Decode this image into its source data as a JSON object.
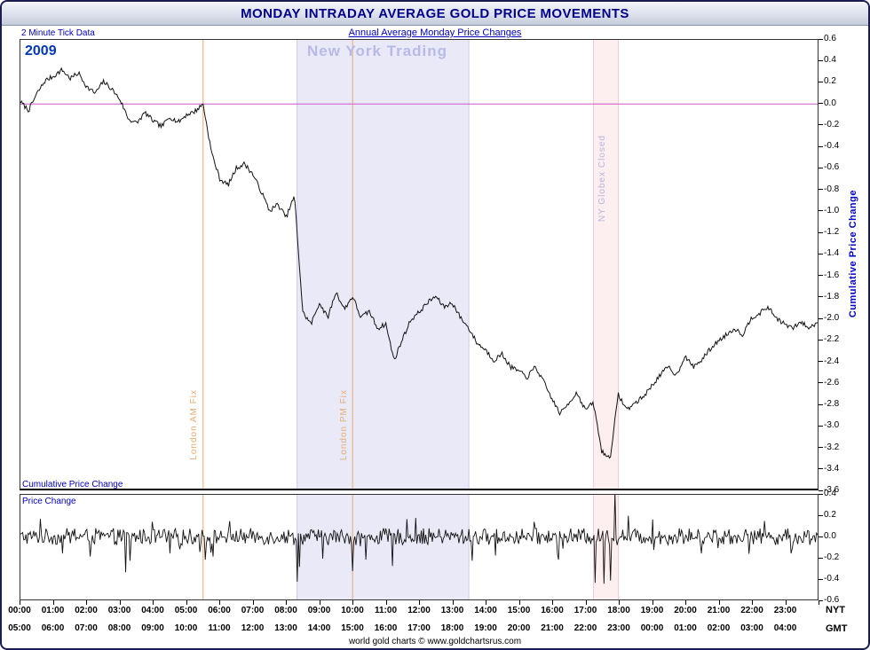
{
  "window": {
    "title": "MONDAY INTRADAY AVERAGE GOLD PRICE MOVEMENTS"
  },
  "header": {
    "left_note": "2 Minute Tick Data",
    "center_link": "Annual Average Monday Price Changes"
  },
  "chart": {
    "year_label": "2009",
    "watermark": "New York Trading",
    "right_axis_title": "Cumulative Price Change",
    "main_panel_label": "Cumulative Price Change",
    "lower_panel_label": "Price Change",
    "nyt_axis_label": "NYT",
    "gmt_axis_label": "GMT",
    "footer": "world gold charts © www.goldchartsrus.com",
    "annotations": {
      "london_am": "London AM Fix",
      "london_pm": "London PM Fix",
      "globex": "NY Globex Closed"
    },
    "colors": {
      "title_text": "#00008b",
      "blue_text": "#0000bb",
      "line": "#111111",
      "zero_line": "#cc55cc",
      "watermark_text": "#b7bae6",
      "fix_label_text": "#e6ad72",
      "globex_label_text": "#b4b4de"
    }
  },
  "axes": {
    "x_ticks_nyt": [
      "00:00",
      "01:00",
      "02:00",
      "03:00",
      "04:00",
      "05:00",
      "06:00",
      "07:00",
      "08:00",
      "09:00",
      "10:00",
      "11:00",
      "12:00",
      "13:00",
      "14:00",
      "15:00",
      "16:00",
      "17:00",
      "18:00",
      "19:00",
      "20:00",
      "21:00",
      "22:00",
      "23:00"
    ],
    "x_ticks_gmt": [
      "05:00",
      "06:00",
      "07:00",
      "08:00",
      "09:00",
      "10:00",
      "11:00",
      "12:00",
      "13:00",
      "14:00",
      "15:00",
      "16:00",
      "17:00",
      "18:00",
      "19:00",
      "20:00",
      "21:00",
      "22:00",
      "23:00",
      "00:00",
      "01:00",
      "02:00",
      "03:00",
      "04:00"
    ],
    "main_y": {
      "max": 0.6,
      "min": -3.6,
      "step": 0.2
    },
    "lower_y": {
      "max": 0.4,
      "min": -0.6,
      "step": 0.2
    }
  },
  "chart_data": [
    {
      "type": "line",
      "name": "cumulative_price_change",
      "title": "Cumulative Price Change",
      "x_unit": "hours NYT (0-24)",
      "x_start": 0,
      "x_step_hours": 0.25,
      "values": [
        0.02,
        -0.06,
        0.1,
        0.22,
        0.26,
        0.32,
        0.24,
        0.29,
        0.16,
        0.1,
        0.21,
        0.14,
        0.04,
        -0.14,
        -0.18,
        -0.08,
        -0.16,
        -0.21,
        -0.12,
        -0.17,
        -0.1,
        -0.07,
        0.0,
        -0.45,
        -0.7,
        -0.76,
        -0.6,
        -0.56,
        -0.66,
        -0.82,
        -1.0,
        -0.94,
        -1.06,
        -0.86,
        -1.95,
        -2.06,
        -1.86,
        -2.0,
        -1.76,
        -1.92,
        -1.8,
        -2.0,
        -1.94,
        -2.1,
        -2.06,
        -2.4,
        -2.2,
        -2.02,
        -1.95,
        -1.86,
        -1.8,
        -1.9,
        -1.86,
        -2.0,
        -2.1,
        -2.24,
        -2.3,
        -2.4,
        -2.34,
        -2.46,
        -2.5,
        -2.56,
        -2.46,
        -2.6,
        -2.76,
        -2.9,
        -2.8,
        -2.7,
        -2.86,
        -2.8,
        -3.25,
        -3.32,
        -2.72,
        -2.86,
        -2.8,
        -2.74,
        -2.64,
        -2.54,
        -2.46,
        -2.54,
        -2.36,
        -2.46,
        -2.4,
        -2.3,
        -2.22,
        -2.16,
        -2.1,
        -2.16,
        -2.0,
        -1.96,
        -1.9,
        -2.0,
        -2.06,
        -2.1,
        -2.04,
        -2.1,
        -2.04
      ],
      "ylim": [
        -3.6,
        0.6
      ],
      "zero_line": 0.0,
      "jitter": 0.022,
      "jitter_seed": 7,
      "regions": [
        {
          "name": "New York Trading",
          "start_hour": 8.33,
          "end_hour": 13.5,
          "color": "#e9e9f8",
          "edge": "#c9c9ec"
        },
        {
          "name": "NY Globex Closed",
          "start_hour": 17.25,
          "end_hour": 18.0,
          "color": "#fdeef0",
          "edge": "#f0ccd6"
        }
      ],
      "vlines": [
        {
          "name": "London AM Fix",
          "hour": 5.5,
          "color": "#e8aa70"
        },
        {
          "name": "London PM Fix",
          "hour": 10.0,
          "color": "#e8aa70"
        }
      ]
    },
    {
      "type": "line",
      "name": "price_change_2min",
      "title": "Price Change",
      "x_unit": "hours NYT (0-24)",
      "points_per_hour": 30,
      "ylim": [
        -0.6,
        0.4
      ],
      "noise_amplitude": 0.05,
      "noise_seed": 1234,
      "spikes": [
        {
          "t": 0.6,
          "v": 0.17
        },
        {
          "t": 1.25,
          "v": -0.16
        },
        {
          "t": 2.1,
          "v": -0.19
        },
        {
          "t": 3.15,
          "v": -0.34
        },
        {
          "t": 3.3,
          "v": -0.23
        },
        {
          "t": 4.5,
          "v": -0.16
        },
        {
          "t": 5.55,
          "v": -0.22
        },
        {
          "t": 5.8,
          "v": -0.19
        },
        {
          "t": 6.3,
          "v": 0.15
        },
        {
          "t": 8.33,
          "v": -0.43
        },
        {
          "t": 8.4,
          "v": -0.29
        },
        {
          "t": 9.1,
          "v": -0.21
        },
        {
          "t": 10.0,
          "v": -0.33
        },
        {
          "t": 10.4,
          "v": -0.22
        },
        {
          "t": 11.2,
          "v": -0.28
        },
        {
          "t": 11.9,
          "v": 0.18
        },
        {
          "t": 13.6,
          "v": -0.23
        },
        {
          "t": 14.3,
          "v": -0.18
        },
        {
          "t": 16.2,
          "v": -0.22
        },
        {
          "t": 17.3,
          "v": -0.44
        },
        {
          "t": 17.55,
          "v": -0.45
        },
        {
          "t": 17.75,
          "v": -0.42
        },
        {
          "t": 17.9,
          "v": 0.43
        },
        {
          "t": 18.3,
          "v": 0.2
        },
        {
          "t": 20.5,
          "v": -0.16
        },
        {
          "t": 22.4,
          "v": 0.15
        },
        {
          "t": 23.2,
          "v": -0.16
        }
      ]
    }
  ]
}
